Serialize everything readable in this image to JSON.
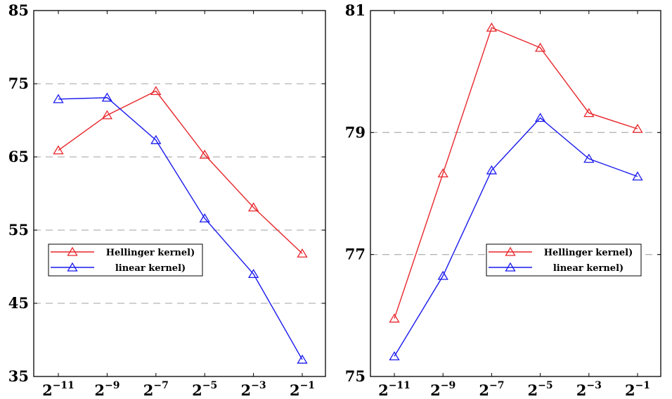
{
  "chart_data": [
    {
      "type": "line",
      "title": "",
      "xlabel": "",
      "ylabel": "",
      "x": [
        "2^{-11}",
        "2^{-9}",
        "2^{-7}",
        "2^{-5}",
        "2^{-3}",
        "2^{-1}"
      ],
      "x_tick_labels": [
        {
          "base": "2",
          "exp": "−11"
        },
        {
          "base": "2",
          "exp": "−9"
        },
        {
          "base": "2",
          "exp": "−7"
        },
        {
          "base": "2",
          "exp": "−5"
        },
        {
          "base": "2",
          "exp": "−3"
        },
        {
          "base": "2",
          "exp": "−1"
        }
      ],
      "ylim": [
        35,
        85
      ],
      "y_ticks": [
        35,
        45,
        55,
        65,
        75,
        85
      ],
      "y_tick_labels": [
        "35",
        "45",
        "55",
        "65",
        "75",
        "85"
      ],
      "grid_y": [
        45,
        55,
        65,
        75
      ],
      "grid": "dashed horizontal",
      "legend_position": "center-left",
      "series": [
        {
          "name": "Hellinger kernel)",
          "color": "#e8262b",
          "marker": "triangle",
          "values": [
            65.9,
            70.7,
            74.0,
            65.3,
            58.1,
            51.8
          ]
        },
        {
          "name": "linear kernel)",
          "color": "#1a1aee",
          "marker": "triangle",
          "values": [
            72.9,
            73.1,
            67.3,
            56.6,
            49.0,
            37.3
          ]
        }
      ]
    },
    {
      "type": "line",
      "title": "",
      "xlabel": "",
      "ylabel": "",
      "x": [
        "2^{-11}",
        "2^{-9}",
        "2^{-7}",
        "2^{-5}",
        "2^{-3}",
        "2^{-1}"
      ],
      "x_tick_labels": [
        {
          "base": "2",
          "exp": "−11"
        },
        {
          "base": "2",
          "exp": "−9"
        },
        {
          "base": "2",
          "exp": "−7"
        },
        {
          "base": "2",
          "exp": "−5"
        },
        {
          "base": "2",
          "exp": "−3"
        },
        {
          "base": "2",
          "exp": "−1"
        }
      ],
      "ylim": [
        75,
        81
      ],
      "y_ticks": [
        75,
        77,
        79,
        81
      ],
      "y_tick_labels": [
        "75",
        "77",
        "79",
        "81"
      ],
      "grid_y": [
        77,
        79
      ],
      "grid": "dashed horizontal",
      "legend_position": "center-right",
      "series": [
        {
          "name": "Hellinger kernel)",
          "color": "#e8262b",
          "marker": "triangle",
          "values": [
            75.95,
            78.33,
            80.72,
            80.39,
            79.32,
            79.06
          ]
        },
        {
          "name": "linear kernel)",
          "color": "#1a1aee",
          "marker": "triangle",
          "values": [
            75.33,
            76.65,
            78.38,
            79.24,
            78.57,
            78.28
          ]
        }
      ]
    }
  ]
}
